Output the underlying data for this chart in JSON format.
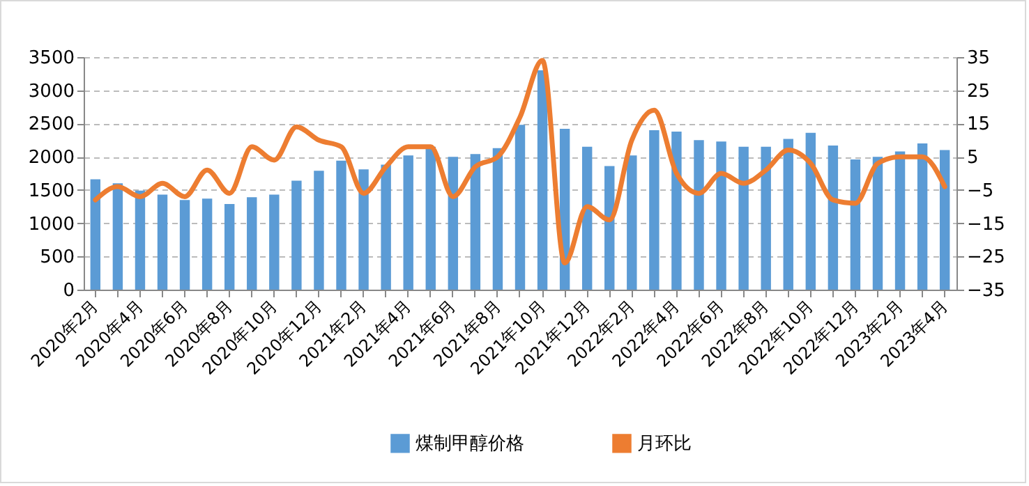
{
  "chart_data": {
    "type": "bar",
    "categories": [
      "2020年2月",
      null,
      "2020年4月",
      null,
      "2020年6月",
      null,
      "2020年8月",
      null,
      "2020年10月",
      null,
      "2020年12月",
      null,
      "2021年2月",
      null,
      "2021年4月",
      null,
      "2021年6月",
      null,
      "2021年8月",
      null,
      "2021年10月",
      null,
      "2021年12月",
      null,
      "2022年2月",
      null,
      "2022年4月",
      null,
      "2022年6月",
      null,
      "2022年8月",
      null,
      "2022年10月",
      null,
      "2022年12月",
      null,
      "2023年2月",
      null,
      "2023年4月"
    ],
    "series": [
      {
        "name": "煤制甲醇价格",
        "color": "#5b9bd5",
        "values": [
          1660,
          1600,
          1490,
          1430,
          1350,
          1370,
          1290,
          1390,
          1430,
          1640,
          1790,
          1940,
          1810,
          1880,
          2020,
          2150,
          2000,
          2040,
          2130,
          2480,
          3300,
          2420,
          2150,
          1860,
          2020,
          2400,
          2380,
          2250,
          2230,
          2150,
          2150,
          2270,
          2360,
          2170,
          1960,
          2000,
          2080,
          2200,
          2100
        ]
      },
      {
        "name": "月环比",
        "type": "line",
        "axis": "y2",
        "color": "#ed7d31",
        "values": [
          -8,
          -4,
          -7,
          -3,
          -7,
          1,
          -6,
          8,
          4,
          14,
          10,
          8,
          -6,
          2,
          8,
          8,
          -7,
          2,
          5,
          17,
          34,
          -27,
          -10,
          -14,
          10,
          19,
          0,
          -6,
          0,
          -3,
          1,
          7,
          3,
          -8,
          -9,
          3,
          5,
          5,
          -4
        ]
      }
    ],
    "ylim": [
      0,
      3500
    ],
    "yticks": [
      0,
      500,
      1000,
      1500,
      2000,
      2500,
      3000,
      3500
    ],
    "y2lim": [
      -35,
      35
    ],
    "y2ticks": [
      -35,
      -25,
      -15,
      -5,
      5,
      15,
      25,
      35
    ],
    "grid": "y",
    "legend": "bottom",
    "line_style": "solid",
    "marker": "none"
  }
}
